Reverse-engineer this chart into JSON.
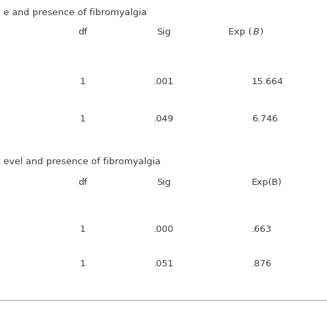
{
  "background_color": "#ffffff",
  "text_color": "#3d3d3d",
  "header1_text": "e and presence of fibromyalgia",
  "header2_text": "evel and presence of fibromyalgia",
  "col_headers_1": [
    "df",
    "Sig",
    "Exp (B)"
  ],
  "col_headers_2": [
    "df",
    "Sig",
    "Exp(B)"
  ],
  "rows_1": [
    [
      "1",
      ".001",
      "15.664"
    ],
    [
      "1",
      ".049",
      "6.746"
    ]
  ],
  "rows_2": [
    [
      "1",
      ".000",
      ".663"
    ],
    [
      "1",
      ".051",
      ".876"
    ]
  ],
  "font_size": 9.5,
  "italic_B": true,
  "fig_width": 4.74,
  "fig_height": 4.74,
  "dpi": 100
}
